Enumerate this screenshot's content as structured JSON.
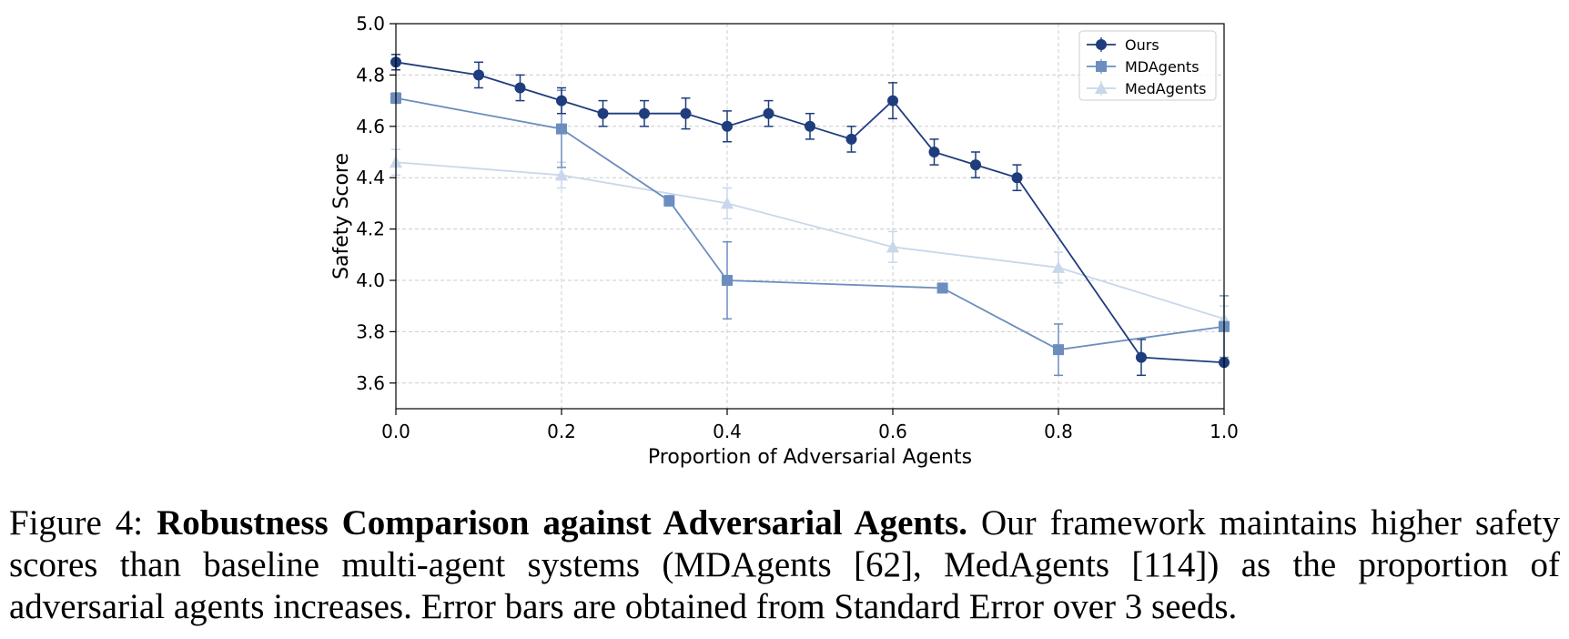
{
  "chart_data": {
    "type": "line",
    "xlabel": "Proportion of Adversarial Agents",
    "ylabel": "Safety Score",
    "xlim": [
      0.0,
      1.0
    ],
    "ylim": [
      3.5,
      5.0
    ],
    "xticks": [
      "0.0",
      "0.2",
      "0.4",
      "0.6",
      "0.8",
      "1.0"
    ],
    "yticks": [
      "3.6",
      "3.8",
      "4.0",
      "4.2",
      "4.4",
      "4.6",
      "4.8",
      "5.0"
    ],
    "grid": true,
    "legend_position": "top-right",
    "series": [
      {
        "name": "Ours",
        "marker": "circle",
        "color": "#1f3c7d",
        "x": [
          0.0,
          0.1,
          0.15,
          0.2,
          0.25,
          0.3,
          0.35,
          0.4,
          0.45,
          0.5,
          0.55,
          0.6,
          0.65,
          0.7,
          0.75,
          0.9,
          1.0
        ],
        "y": [
          4.85,
          4.8,
          4.75,
          4.7,
          4.65,
          4.65,
          4.65,
          4.6,
          4.65,
          4.6,
          4.55,
          4.7,
          4.5,
          4.45,
          4.4,
          3.7,
          3.68
        ],
        "err": [
          0.03,
          0.05,
          0.05,
          0.05,
          0.05,
          0.05,
          0.06,
          0.06,
          0.05,
          0.05,
          0.05,
          0.07,
          0.05,
          0.05,
          0.05,
          0.07,
          0.0
        ]
      },
      {
        "name": "MDAgents",
        "marker": "square",
        "color": "#6c8ebf",
        "x": [
          0.0,
          0.2,
          0.33,
          0.4,
          0.66,
          0.8,
          1.0
        ],
        "y": [
          4.71,
          4.59,
          4.31,
          4.0,
          3.97,
          3.73,
          3.82
        ],
        "err": [
          0.02,
          0.15,
          0.02,
          0.15,
          0.0,
          0.1,
          0.12
        ]
      },
      {
        "name": "MedAgents",
        "marker": "triangle",
        "color": "#c9d7ea",
        "x": [
          0.0,
          0.2,
          0.4,
          0.6,
          0.8,
          1.0
        ],
        "y": [
          4.46,
          4.41,
          4.3,
          4.13,
          4.05,
          3.85
        ],
        "err": [
          0.05,
          0.05,
          0.06,
          0.06,
          0.06,
          0.05
        ]
      }
    ]
  },
  "caption": {
    "label": "Figure 4:",
    "bold": "Robustness Comparison against Adversarial Agents.",
    "text": "Our framework maintains higher safety scores than baseline multi-agent systems (MDAgents [62], MedAgents [114]) as the proportion of adversarial agents increases. Error bars are obtained from Standard Error over 3 seeds."
  }
}
